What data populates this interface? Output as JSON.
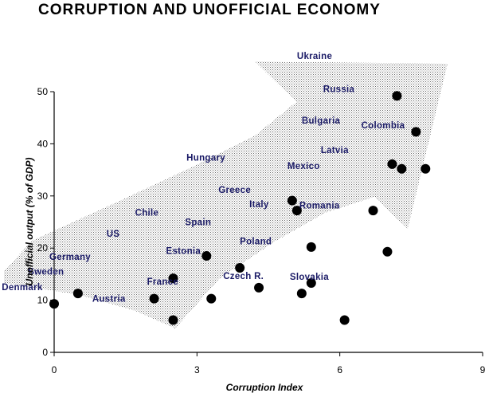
{
  "chart_data": {
    "type": "scatter",
    "title": "CORRUPTION AND UNOFFICIAL ECONOMY",
    "xlabel": "Corruption Index",
    "ylabel": "Unofficial output (% of GDP)",
    "xlim": [
      0,
      9
    ],
    "ylim": [
      0,
      50
    ],
    "xticks": [
      "0",
      "3",
      "6",
      "9"
    ],
    "yticks": [
      "0",
      "10",
      "20",
      "30",
      "40",
      "50"
    ],
    "grid": false,
    "annotation": "shaded upward arrow indicating positive trend",
    "points": [
      {
        "x": 0.0,
        "y": 9.3
      },
      {
        "x": 0.5,
        "y": 11.3
      },
      {
        "x": 2.1,
        "y": 10.3
      },
      {
        "x": 2.5,
        "y": 14.2
      },
      {
        "x": 2.5,
        "y": 6.2
      },
      {
        "x": 3.2,
        "y": 18.5
      },
      {
        "x": 3.3,
        "y": 10.3
      },
      {
        "x": 3.9,
        "y": 16.2
      },
      {
        "x": 4.3,
        "y": 12.4
      },
      {
        "x": 5.0,
        "y": 29.1
      },
      {
        "x": 5.1,
        "y": 27.2
      },
      {
        "x": 5.2,
        "y": 11.3
      },
      {
        "x": 5.4,
        "y": 20.2
      },
      {
        "x": 5.4,
        "y": 13.3
      },
      {
        "x": 6.1,
        "y": 6.2
      },
      {
        "x": 6.7,
        "y": 27.2
      },
      {
        "x": 7.0,
        "y": 19.3
      },
      {
        "x": 7.1,
        "y": 36.1
      },
      {
        "x": 7.2,
        "y": 49.2
      },
      {
        "x": 7.3,
        "y": 35.2
      },
      {
        "x": 7.6,
        "y": 42.3
      },
      {
        "x": 7.8,
        "y": 35.2
      }
    ],
    "labels": [
      {
        "text": "Ukraine",
        "x": 5.1,
        "y": 56.3
      },
      {
        "text": "Russia",
        "x": 5.65,
        "y": 49.9
      },
      {
        "text": "Bulgaria",
        "x": 5.2,
        "y": 43.9
      },
      {
        "text": "Colombia",
        "x": 6.45,
        "y": 43.0
      },
      {
        "text": "Latvia",
        "x": 5.6,
        "y": 38.2
      },
      {
        "text": "Hungary",
        "x": 2.78,
        "y": 36.8
      },
      {
        "text": "Mexico",
        "x": 4.9,
        "y": 35.2
      },
      {
        "text": "Greece",
        "x": 3.45,
        "y": 30.6
      },
      {
        "text": "Italy",
        "x": 4.1,
        "y": 27.8
      },
      {
        "text": "Romania",
        "x": 5.15,
        "y": 27.6
      },
      {
        "text": "Chile",
        "x": 1.7,
        "y": 26.2
      },
      {
        "text": "Spain",
        "x": 2.75,
        "y": 24.4
      },
      {
        "text": "US",
        "x": 1.1,
        "y": 22.2
      },
      {
        "text": "Poland",
        "x": 3.9,
        "y": 20.7
      },
      {
        "text": "Germany",
        "x": -0.1,
        "y": 17.7
      },
      {
        "text": "Estonia",
        "x": 2.35,
        "y": 18.9
      },
      {
        "text": "Sweden",
        "x": -0.55,
        "y": 14.9
      },
      {
        "text": "Czech R.",
        "x": 3.55,
        "y": 14.1
      },
      {
        "text": "Slovakia",
        "x": 4.95,
        "y": 13.9
      },
      {
        "text": "France",
        "x": 1.95,
        "y": 13.0
      },
      {
        "text": "Denmark",
        "x": -1.1,
        "y": 11.9
      },
      {
        "text": "Austria",
        "x": 0.8,
        "y": 9.7
      }
    ]
  }
}
